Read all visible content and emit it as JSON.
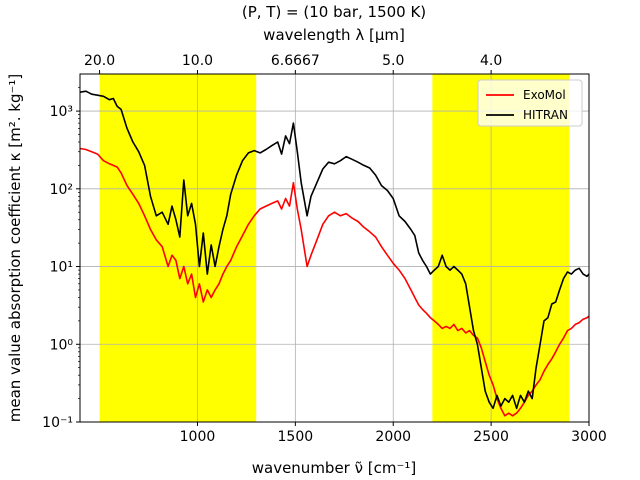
{
  "chart_data": {
    "type": "line",
    "title": "(P, T) = (10 bar, 1500 K)",
    "xlabel": "wavenumber ν̃ [cm⁻¹]",
    "ylabel": "mean value absorption coefficient κ [m². kg⁻¹]",
    "secondary_xlabel": "wavelength λ [μm]",
    "xlim": [
      400,
      3000
    ],
    "ylim": [
      0.1,
      3000
    ],
    "yscale": "log",
    "grid": true,
    "legend": "top-right",
    "x_ticks": [
      1000,
      1500,
      2000,
      2500,
      3000
    ],
    "x_tick_labels": [
      "1000",
      "1500",
      "2000",
      "2500",
      "3000"
    ],
    "y_ticks": [
      0.1,
      1,
      10,
      100,
      1000
    ],
    "y_tick_labels": [
      "10⁻¹",
      "10⁰",
      "10¹",
      "10²",
      "10³"
    ],
    "top_ticks": [
      500,
      1000,
      1500,
      2000,
      2500
    ],
    "top_tick_labels": [
      "20.0",
      "10.0",
      "6.6667",
      "5.0",
      "4.0"
    ],
    "shaded_regions": [
      {
        "from": 500,
        "to": 1300,
        "color": "#ffff00"
      },
      {
        "from": 2200,
        "to": 2900,
        "color": "#ffff00"
      }
    ],
    "series": [
      {
        "name": "HITRAN",
        "color": "#000000",
        "x": [
          400,
          430,
          460,
          490,
          520,
          550,
          570,
          590,
          610,
          640,
          670,
          700,
          730,
          760,
          790,
          820,
          850,
          870,
          890,
          910,
          930,
          950,
          970,
          990,
          1010,
          1030,
          1050,
          1070,
          1090,
          1110,
          1130,
          1150,
          1170,
          1200,
          1230,
          1260,
          1290,
          1320,
          1350,
          1380,
          1410,
          1430,
          1450,
          1470,
          1490,
          1510,
          1530,
          1560,
          1580,
          1610,
          1640,
          1670,
          1700,
          1730,
          1760,
          1790,
          1820,
          1850,
          1880,
          1910,
          1940,
          1970,
          2000,
          2030,
          2060,
          2090,
          2110,
          2130,
          2150,
          2170,
          2190,
          2210,
          2230,
          2250,
          2270,
          2290,
          2310,
          2330,
          2350,
          2370,
          2390,
          2410,
          2430,
          2450,
          2470,
          2490,
          2510,
          2530,
          2550,
          2570,
          2590,
          2610,
          2630,
          2650,
          2670,
          2690,
          2710,
          2730,
          2750,
          2770,
          2790,
          2810,
          2830,
          2850,
          2870,
          2890,
          2910,
          2930,
          2950,
          2970,
          2990,
          3000
        ],
        "values": [
          1750,
          1800,
          1650,
          1600,
          1550,
          1400,
          1450,
          1150,
          1050,
          600,
          400,
          300,
          200,
          80,
          45,
          50,
          35,
          60,
          40,
          24,
          130,
          45,
          65,
          35,
          10,
          27,
          8,
          19,
          10,
          18,
          30,
          45,
          85,
          150,
          230,
          290,
          310,
          290,
          320,
          360,
          400,
          280,
          480,
          380,
          700,
          300,
          120,
          45,
          80,
          120,
          180,
          220,
          210,
          230,
          260,
          240,
          220,
          200,
          185,
          150,
          110,
          95,
          75,
          45,
          38,
          30,
          25,
          15,
          12,
          10,
          8,
          9,
          10,
          14,
          10,
          9,
          10,
          9,
          8,
          6,
          3,
          1.5,
          1.0,
          0.5,
          0.25,
          0.18,
          0.15,
          0.22,
          0.16,
          0.2,
          0.18,
          0.22,
          0.15,
          0.22,
          0.18,
          0.25,
          0.2,
          0.5,
          1.0,
          2.0,
          2.2,
          3.3,
          3.5,
          5,
          7,
          8.5,
          8,
          9,
          9.5,
          8,
          7.5,
          8
        ]
      },
      {
        "name": "ExoMol",
        "color": "#ff0000",
        "x": [
          400,
          430,
          460,
          490,
          520,
          550,
          570,
          590,
          610,
          640,
          670,
          700,
          730,
          760,
          790,
          820,
          850,
          870,
          890,
          910,
          930,
          950,
          970,
          990,
          1010,
          1030,
          1050,
          1070,
          1090,
          1110,
          1130,
          1150,
          1170,
          1200,
          1230,
          1260,
          1290,
          1320,
          1350,
          1380,
          1410,
          1430,
          1450,
          1470,
          1490,
          1510,
          1530,
          1560,
          1580,
          1610,
          1640,
          1670,
          1700,
          1730,
          1760,
          1790,
          1820,
          1850,
          1880,
          1910,
          1940,
          1970,
          2000,
          2030,
          2060,
          2090,
          2110,
          2130,
          2150,
          2170,
          2190,
          2210,
          2230,
          2250,
          2270,
          2290,
          2310,
          2330,
          2350,
          2370,
          2390,
          2410,
          2430,
          2450,
          2470,
          2490,
          2510,
          2530,
          2550,
          2570,
          2590,
          2610,
          2630,
          2650,
          2670,
          2690,
          2710,
          2730,
          2750,
          2770,
          2790,
          2810,
          2830,
          2850,
          2870,
          2890,
          2910,
          2930,
          2950,
          2970,
          2990,
          3000
        ],
        "values": [
          330,
          320,
          300,
          280,
          230,
          210,
          200,
          190,
          160,
          110,
          85,
          65,
          45,
          30,
          22,
          18,
          10,
          14,
          12,
          7,
          10,
          6,
          8,
          4,
          6,
          3.5,
          5,
          4,
          5,
          6,
          8,
          10,
          12,
          18,
          25,
          35,
          45,
          55,
          60,
          65,
          70,
          55,
          75,
          60,
          120,
          55,
          30,
          10,
          14,
          22,
          35,
          45,
          50,
          45,
          48,
          42,
          38,
          32,
          28,
          24,
          18,
          14,
          11,
          9,
          7,
          5,
          4,
          3.2,
          2.8,
          2.5,
          2.2,
          2.0,
          1.8,
          1.6,
          1.7,
          1.6,
          1.8,
          1.5,
          1.6,
          1.4,
          1.5,
          1.3,
          1.2,
          0.9,
          0.6,
          0.4,
          0.3,
          0.2,
          0.15,
          0.12,
          0.13,
          0.12,
          0.13,
          0.15,
          0.18,
          0.22,
          0.25,
          0.3,
          0.35,
          0.45,
          0.55,
          0.65,
          0.8,
          1.0,
          1.2,
          1.5,
          1.6,
          1.8,
          1.9,
          2.1,
          2.2,
          2.3
        ]
      }
    ]
  }
}
